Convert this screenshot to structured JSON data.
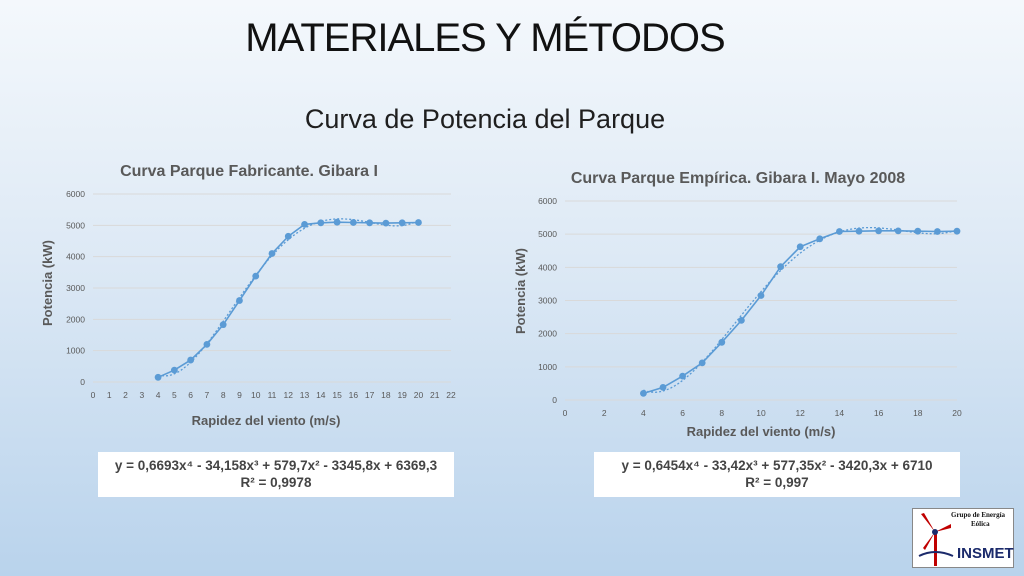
{
  "slide": {
    "title": "MATERIALES Y MÉTODOS",
    "subtitle": "Curva de Potencia del Parque",
    "equation_left": "y = 0,6693x⁴ - 34,158x³ + 579,7x² - 3345,8x + 6369,3",
    "r2_left": "R² = 0,9978",
    "equation_right": "y = 0,6454x⁴ - 33,42x³ + 577,35x² - 3420,3x + 6710",
    "r2_right": "R² = 0,997",
    "logo_line1": "Grupo de Energía",
    "logo_line2": "Eólica",
    "logo_name": "INSMET"
  },
  "colors": {
    "series": "#5b9bd5",
    "title_text": "#595959",
    "axis_text": "#595959",
    "grid": "#d9d9d9",
    "logo_red": "#c00000",
    "logo_blue": "#1b2a6b"
  },
  "chart_data": [
    {
      "type": "line",
      "title": "Curva Parque Fabricante. Gibara I",
      "xlabel": "Rapidez del viento (m/s)",
      "ylabel": "Potencia (kW)",
      "xlim": [
        0,
        22
      ],
      "ylim": [
        0,
        6000
      ],
      "xticks": [
        0,
        1,
        2,
        3,
        4,
        5,
        6,
        7,
        8,
        9,
        10,
        11,
        12,
        13,
        14,
        15,
        16,
        17,
        18,
        19,
        20,
        21,
        22
      ],
      "yticks": [
        0,
        1000,
        2000,
        3000,
        4000,
        5000,
        6000
      ],
      "grid": true,
      "trendline": "polynomial-4 (dotted)",
      "series": [
        {
          "x": [
            4,
            5,
            6,
            7,
            8,
            9,
            10,
            11,
            12,
            13,
            14,
            15,
            16,
            17,
            18,
            19,
            20
          ],
          "y": [
            150,
            380,
            700,
            1200,
            1830,
            2600,
            3380,
            4100,
            4650,
            5030,
            5080,
            5100,
            5090,
            5080,
            5070,
            5080,
            5090
          ]
        }
      ]
    },
    {
      "type": "line",
      "title": "Curva Parque Empírica. Gibara I. Mayo 2008",
      "xlabel": "Rapidez del viento (m/s)",
      "ylabel": "Potencia (kW)",
      "xlim": [
        0,
        20
      ],
      "ylim": [
        0,
        6000
      ],
      "xticks": [
        0,
        2,
        4,
        6,
        8,
        10,
        12,
        14,
        16,
        18,
        20
      ],
      "yticks": [
        0,
        1000,
        2000,
        3000,
        4000,
        5000,
        6000
      ],
      "grid": true,
      "trendline": "polynomial-4 (dotted)",
      "series": [
        {
          "x": [
            4,
            5,
            6,
            7,
            8,
            9,
            10,
            11,
            12,
            13,
            14,
            15,
            16,
            17,
            18,
            19,
            20
          ],
          "y": [
            200,
            380,
            720,
            1120,
            1740,
            2400,
            3150,
            4020,
            4620,
            4860,
            5080,
            5090,
            5100,
            5100,
            5090,
            5080,
            5090
          ]
        }
      ]
    }
  ]
}
